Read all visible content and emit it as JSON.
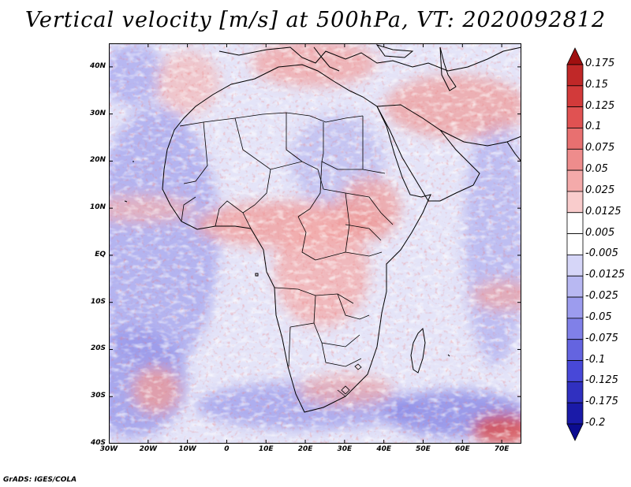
{
  "title": "Vertical velocity [m/s] at 500hPa, VT: 2020092812",
  "credit": "GrADS: IGES/COLA",
  "map": {
    "variable": "Vertical velocity",
    "units": "m/s",
    "level": "500hPa",
    "valid_time": "2020092812",
    "region": "Africa",
    "lon_range": [
      -30,
      75
    ],
    "lat_range": [
      -40,
      45
    ],
    "lat_ticks": [
      "40N",
      "30N",
      "20N",
      "10N",
      "EQ",
      "10S",
      "20S",
      "30S",
      "40S"
    ],
    "lat_values": [
      40,
      30,
      20,
      10,
      0,
      -10,
      -20,
      -30,
      -40
    ],
    "lon_ticks": [
      "30W",
      "20W",
      "10W",
      "0",
      "10E",
      "20E",
      "30E",
      "40E",
      "50E",
      "60E",
      "70E"
    ],
    "lon_values": [
      -30,
      -20,
      -10,
      0,
      10,
      20,
      30,
      40,
      50,
      60,
      70
    ]
  },
  "colorbar": {
    "labels": [
      "0.175",
      "0.15",
      "0.125",
      "0.1",
      "0.075",
      "0.05",
      "0.025",
      "0.0125",
      "0.005",
      "-0.005",
      "-0.0125",
      "-0.025",
      "-0.05",
      "-0.075",
      "-0.1",
      "-0.125",
      "-0.175",
      "-0.2"
    ],
    "colors": [
      "#a01010",
      "#c02828",
      "#d23a3a",
      "#e05252",
      "#e87070",
      "#ee8c8c",
      "#f4aaaa",
      "#f9cccc",
      "#ffffff",
      "#ffffff",
      "#d6d6f8",
      "#b8b8f2",
      "#9c9cee",
      "#8080e8",
      "#6464e0",
      "#4848d8",
      "#3030c0",
      "#1a1aa8",
      "#0c0c90"
    ]
  }
}
